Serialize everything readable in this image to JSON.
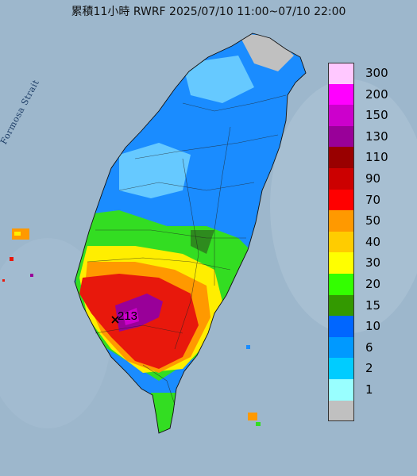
{
  "title": "累積11小時 RWRF 2025/07/10 11:00~07/10 22:00",
  "strait_label": "Formosa Strait",
  "max_label": "213",
  "legend": {
    "colors": [
      "#ffc8ff",
      "#ff00ff",
      "#cc00cc",
      "#990099",
      "#990000",
      "#cc0000",
      "#ff0000",
      "#ff9900",
      "#ffcc00",
      "#ffff00",
      "#33ff00",
      "#339900",
      "#0066ff",
      "#0099ff",
      "#00ccff",
      "#99ffff",
      "#c0c0c0"
    ],
    "labels": [
      "300",
      "200",
      "150",
      "130",
      "110",
      "90",
      "70",
      "50",
      "40",
      "30",
      "20",
      "15",
      "10",
      "6",
      "2",
      "1"
    ]
  },
  "colors": {
    "sea": "#9db7cc",
    "land_light_blue": "#66c9ff",
    "land_blue": "#1a8cff",
    "green": "#33dd22",
    "dark_green": "#2e8b1e",
    "yellow": "#ffee00",
    "orange": "#ff9900",
    "red": "#e8180c",
    "purple": "#990099"
  }
}
